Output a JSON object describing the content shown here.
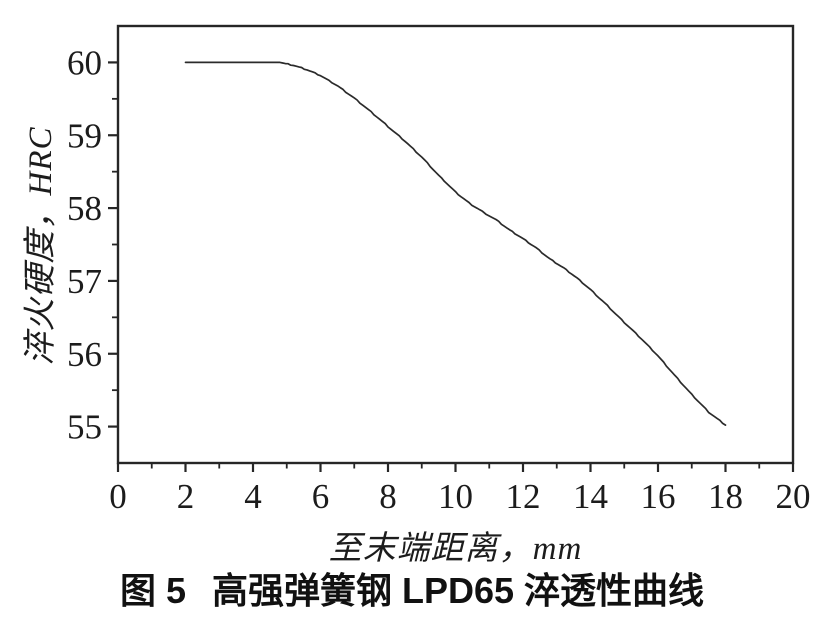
{
  "figure": {
    "caption_number": "图 5",
    "caption_title": "高强弹簧钢 LPD65 淬透性曲线"
  },
  "chart_data": {
    "type": "line",
    "title": "",
    "xlabel": "至末端距离，mm",
    "ylabel": "淬火硬度，HRC",
    "xlim": [
      0,
      20
    ],
    "ylim": [
      54.5,
      60.5
    ],
    "x_major_ticks": [
      0,
      2,
      4,
      6,
      8,
      10,
      12,
      14,
      16,
      18,
      20
    ],
    "x_tick_labels": [
      "0",
      "2",
      "4",
      "6",
      "8",
      "10",
      "12",
      "14",
      "16",
      "18",
      "20"
    ],
    "x_minor_ticks": [
      1,
      3,
      5,
      7,
      9,
      11,
      13,
      15,
      17,
      19
    ],
    "y_major_ticks": [
      55,
      56,
      57,
      58,
      59,
      60
    ],
    "y_tick_labels": [
      "55",
      "56",
      "57",
      "58",
      "59",
      "60"
    ],
    "y_minor_ticks": [
      55.5,
      56.5,
      57.5,
      58.5,
      59.5
    ],
    "grid": false,
    "legend_position": "none",
    "line_color": "#2b2b2b",
    "axis_color": "#262626",
    "series": [
      {
        "points": [
          [
            2.0,
            60.0
          ],
          [
            4.8,
            60.0
          ],
          [
            5.2,
            59.96
          ],
          [
            5.6,
            59.9
          ],
          [
            6.0,
            59.82
          ],
          [
            6.5,
            59.68
          ],
          [
            7.0,
            59.51
          ],
          [
            7.5,
            59.32
          ],
          [
            8.0,
            59.12
          ],
          [
            8.5,
            58.92
          ],
          [
            9.0,
            58.7
          ],
          [
            9.5,
            58.45
          ],
          [
            10.0,
            58.22
          ],
          [
            10.4,
            58.07
          ],
          [
            10.8,
            57.95
          ],
          [
            11.2,
            57.84
          ],
          [
            11.6,
            57.7
          ],
          [
            12.0,
            57.58
          ],
          [
            12.4,
            57.45
          ],
          [
            12.8,
            57.3
          ],
          [
            13.2,
            57.18
          ],
          [
            13.6,
            57.04
          ],
          [
            14.0,
            56.88
          ],
          [
            14.5,
            56.66
          ],
          [
            15.0,
            56.43
          ],
          [
            15.5,
            56.21
          ],
          [
            16.0,
            55.97
          ],
          [
            16.5,
            55.7
          ],
          [
            17.0,
            55.44
          ],
          [
            17.5,
            55.2
          ],
          [
            18.0,
            55.02
          ]
        ]
      }
    ]
  }
}
